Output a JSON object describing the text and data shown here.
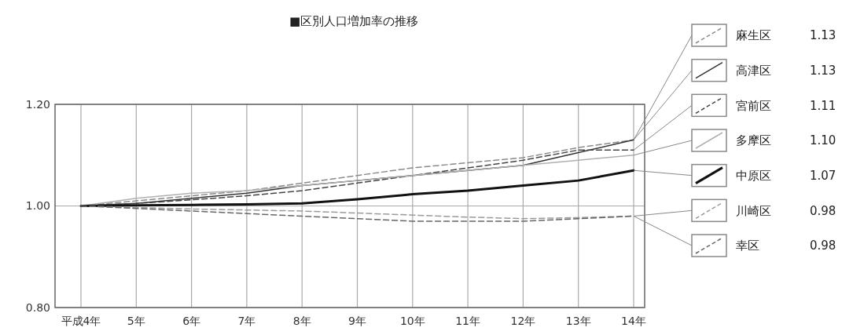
{
  "chart_data": {
    "type": "line",
    "title": "■区別人口増加率の推移",
    "categories": [
      "平成4年",
      "5年",
      "6年",
      "7年",
      "8年",
      "9年",
      "10年",
      "11年",
      "12年",
      "13年",
      "14年"
    ],
    "ylim": [
      0.8,
      1.2
    ],
    "yticks": [
      {
        "value": 0.8,
        "label": "0.80"
      },
      {
        "value": 1.0,
        "label": "1.00"
      },
      {
        "value": 1.2,
        "label": "1.20"
      }
    ],
    "grid": true,
    "legend": "right",
    "marker": "none",
    "annotations": [
      "1.13",
      "1.13",
      "1.11",
      "1.10",
      "1.07",
      "0.98",
      "0.98"
    ],
    "series": [
      {
        "name": "麻生区",
        "color": "#8a8a8a",
        "line_style": "dashed",
        "values": [
          1.0,
          1.01,
          1.02,
          1.03,
          1.045,
          1.06,
          1.075,
          1.085,
          1.095,
          1.115,
          1.13
        ]
      },
      {
        "name": "高津区",
        "color": "#333333",
        "line_style": "solid",
        "values": [
          1.0,
          1.005,
          1.015,
          1.025,
          1.04,
          1.05,
          1.06,
          1.07,
          1.08,
          1.105,
          1.13
        ]
      },
      {
        "name": "宮前区",
        "color": "#444444",
        "line_style": "dashed",
        "values": [
          1.0,
          1.005,
          1.012,
          1.02,
          1.03,
          1.045,
          1.06,
          1.075,
          1.09,
          1.11,
          1.11
        ]
      },
      {
        "name": "多摩区",
        "color": "#b0b0b0",
        "line_style": "solid",
        "values": [
          1.0,
          1.015,
          1.025,
          1.03,
          1.04,
          1.05,
          1.06,
          1.07,
          1.08,
          1.09,
          1.1
        ]
      },
      {
        "name": "中原区",
        "color": "#111111",
        "line_style": "solid",
        "values": [
          1.0,
          1.001,
          1.002,
          1.003,
          1.005,
          1.013,
          1.023,
          1.03,
          1.04,
          1.05,
          1.07
        ]
      },
      {
        "name": "川崎区",
        "color": "#9a9a9a",
        "line_style": "dashed",
        "values": [
          1.0,
          0.997,
          0.994,
          0.992,
          0.99,
          0.986,
          0.982,
          0.978,
          0.975,
          0.977,
          0.98
        ]
      },
      {
        "name": "幸区",
        "color": "#666666",
        "line_style": "dashed",
        "values": [
          1.0,
          0.995,
          0.99,
          0.985,
          0.98,
          0.975,
          0.97,
          0.97,
          0.97,
          0.975,
          0.98
        ]
      }
    ]
  }
}
